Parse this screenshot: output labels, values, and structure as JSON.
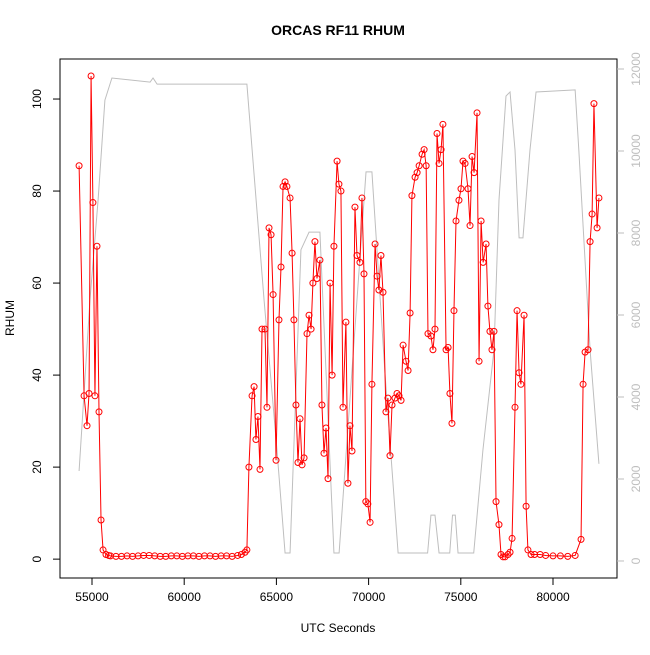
{
  "chart_data": {
    "type": "line",
    "title": "ORCAS RF11 RHUM",
    "x_label": "UTC Seconds",
    "y_label": "RHUM",
    "xlim": [
      53265,
      83470
    ],
    "ylim": [
      -4.1,
      108.7
    ],
    "y2lim": [
      -415,
      12244
    ],
    "xticks": [
      55000,
      60000,
      65000,
      70000,
      75000,
      80000
    ],
    "yticks": [
      0,
      20,
      40,
      60,
      80,
      100
    ],
    "y2ticks": [
      0,
      2000,
      4000,
      6000,
      8000,
      10000,
      12000
    ],
    "series": [
      {
        "color": "#ff0000",
        "marker": "circle",
        "x": [
          54300,
          54570,
          54730,
          54840,
          54950,
          55050,
          55160,
          55270,
          55380,
          55490,
          55600,
          55760,
          55900,
          56000,
          56300,
          56600,
          56900,
          57200,
          57500,
          57800,
          58100,
          58400,
          58700,
          59000,
          59300,
          59600,
          59900,
          60200,
          60500,
          60800,
          61100,
          61400,
          61700,
          62000,
          62300,
          62600,
          62900,
          63100,
          63300,
          63400,
          63510,
          63680,
          63790,
          63890,
          64000,
          64110,
          64220,
          64380,
          64490,
          64600,
          64710,
          64820,
          64980,
          65140,
          65250,
          65360,
          65470,
          65570,
          65740,
          65850,
          65950,
          66060,
          66170,
          66280,
          66390,
          66500,
          66660,
          66770,
          66880,
          66980,
          67090,
          67200,
          67360,
          67470,
          67580,
          67690,
          67800,
          67910,
          68020,
          68120,
          68290,
          68390,
          68500,
          68610,
          68770,
          68880,
          68990,
          69100,
          69260,
          69370,
          69530,
          69640,
          69750,
          69850,
          69960,
          70080,
          70180,
          70350,
          70460,
          70560,
          70670,
          70780,
          70940,
          71050,
          71160,
          71270,
          71430,
          71540,
          71650,
          71760,
          71870,
          72030,
          72140,
          72250,
          72350,
          72520,
          72630,
          72740,
          72900,
          73010,
          73120,
          73220,
          73380,
          73490,
          73600,
          73710,
          73820,
          73930,
          74030,
          74200,
          74310,
          74410,
          74520,
          74630,
          74740,
          74900,
          75010,
          75120,
          75230,
          75390,
          75500,
          75610,
          75720,
          75880,
          75990,
          76100,
          76210,
          76370,
          76470,
          76580,
          76690,
          76800,
          76910,
          77070,
          77180,
          77290,
          77400,
          77560,
          77670,
          77780,
          77940,
          78050,
          78160,
          78260,
          78430,
          78540,
          78640,
          78810,
          79000,
          79300,
          79600,
          80000,
          80400,
          80800,
          81200,
          81520,
          81630,
          81740,
          81900,
          82010,
          82120,
          82220,
          82390,
          82490
        ],
        "values": [
          85.5,
          35.5,
          29,
          36,
          105,
          77.5,
          35.5,
          68,
          32,
          8.5,
          2,
          1,
          0.8,
          0.7,
          0.6,
          0.6,
          0.7,
          0.6,
          0.7,
          0.8,
          0.8,
          0.7,
          0.6,
          0.6,
          0.7,
          0.7,
          0.6,
          0.7,
          0.7,
          0.6,
          0.7,
          0.7,
          0.6,
          0.7,
          0.7,
          0.6,
          0.8,
          1,
          1.5,
          2,
          20,
          35.5,
          37.5,
          26,
          31,
          19.5,
          50,
          50,
          33,
          72,
          70.5,
          57.5,
          21.5,
          52,
          63.5,
          81,
          82,
          81,
          78.5,
          66.5,
          52,
          33.5,
          21,
          30.5,
          20.5,
          22,
          49,
          53,
          50,
          60,
          69,
          61,
          65,
          33.5,
          23,
          28.5,
          17.5,
          60,
          40,
          68,
          86.5,
          81.5,
          80,
          33,
          51.5,
          16.5,
          29,
          23.5,
          76.5,
          66,
          64.5,
          78.5,
          62,
          12.5,
          12,
          8,
          38,
          68.5,
          61.5,
          58.5,
          66,
          58,
          32,
          35,
          22.5,
          33.5,
          35,
          36,
          35.5,
          34.5,
          46.5,
          43,
          41,
          53.5,
          79,
          83,
          84,
          85.5,
          88,
          89,
          85.5,
          49,
          48.5,
          45.5,
          50,
          92.5,
          86,
          89,
          94.5,
          45.5,
          46,
          36,
          29.5,
          54,
          73.5,
          78,
          80.5,
          86.5,
          86,
          80.5,
          72.5,
          87.5,
          84,
          97,
          43,
          73.5,
          64.5,
          68.5,
          55,
          49.5,
          45.5,
          49.5,
          12.5,
          7.5,
          1,
          0.5,
          0.5,
          1,
          1.5,
          4.5,
          33,
          54,
          40.5,
          38,
          53,
          11.5,
          2,
          1,
          1,
          1,
          0.8,
          0.7,
          0.7,
          0.6,
          0.8,
          4.3,
          38,
          45,
          45.5,
          69,
          75,
          99,
          72,
          78.5
        ]
      },
      {
        "color": "#bebebe",
        "axis": "y2",
        "x": [
          54300,
          54890,
          55330,
          55700,
          56080,
          58150,
          58310,
          58530,
          63400,
          64330,
          65030,
          65470,
          65740,
          66330,
          66770,
          67360,
          68120,
          68400,
          69860,
          70180,
          70900,
          71600,
          72140,
          73200,
          73380,
          73600,
          73820,
          74400,
          74550,
          74700,
          74850,
          75700,
          76200,
          76800,
          77070,
          77450,
          77670,
          77940,
          78160,
          78370,
          78750,
          79080,
          81200,
          81400,
          82010,
          82490
        ],
        "values": [
          2195,
          6370,
          8800,
          11240,
          11780,
          11680,
          11780,
          11630,
          11630,
          6370,
          2710,
          195,
          195,
          7590,
          8020,
          8020,
          195,
          195,
          9490,
          9490,
          4500,
          195,
          195,
          195,
          1120,
          1120,
          195,
          195,
          1120,
          1120,
          195,
          195,
          2710,
          5150,
          8800,
          11340,
          11440,
          10020,
          7880,
          7880,
          10020,
          11440,
          11490,
          10020,
          5150,
          2370
        ]
      }
    ]
  }
}
